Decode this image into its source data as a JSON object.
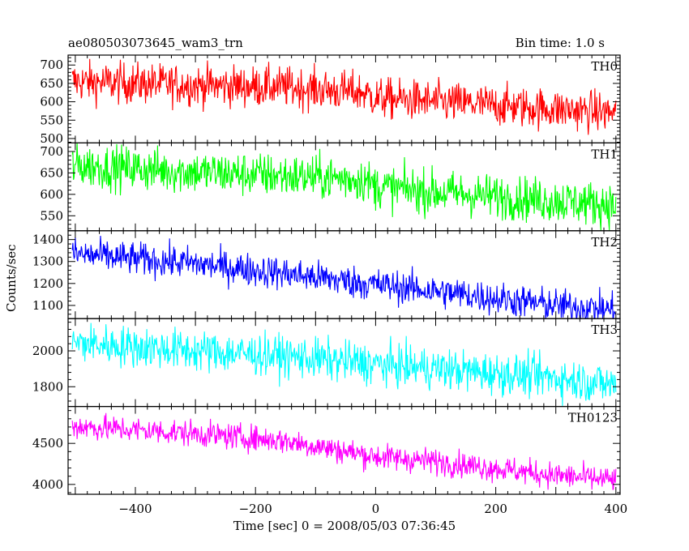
{
  "header": {
    "title": "ae080503073645_wam3_trn",
    "bin_time": "Bin time: 1.0 s"
  },
  "chart_data": {
    "type": "line",
    "xlabel": "Time [sec] 0 = 2008/05/03 07:36:45",
    "ylabel": "Counts/sec",
    "xlim": [
      -512,
      407
    ],
    "x_ticks": [
      -400,
      -200,
      0,
      200,
      400
    ],
    "x_tick_labels": [
      "−400",
      "−200",
      "0",
      "200",
      "400"
    ],
    "x_step": 1.0,
    "panels": [
      {
        "name": "TH0",
        "color": "#ff0000",
        "ylim": [
          488,
          727
        ],
        "ticks": [
          500,
          550,
          600,
          650,
          700
        ],
        "trend": [
          [
            -505,
            655
          ],
          [
            -300,
            645
          ],
          [
            -150,
            640
          ],
          [
            -20,
            625
          ],
          [
            0,
            610
          ],
          [
            100,
            600
          ],
          [
            300,
            580
          ],
          [
            400,
            570
          ]
        ],
        "noise": 28
      },
      {
        "name": "TH1",
        "color": "#00ff00",
        "ylim": [
          515,
          720
        ],
        "ticks": [
          550,
          600,
          650,
          700
        ],
        "trend": [
          [
            -505,
            668
          ],
          [
            -300,
            652
          ],
          [
            -150,
            643
          ],
          [
            -20,
            635
          ],
          [
            0,
            618
          ],
          [
            100,
            605
          ],
          [
            300,
            585
          ],
          [
            400,
            575
          ]
        ],
        "noise": 26
      },
      {
        "name": "TH2",
        "color": "#0000ff",
        "ylim": [
          1040,
          1440
        ],
        "ticks": [
          1100,
          1200,
          1300,
          1400
        ],
        "trend": [
          [
            -505,
            1335
          ],
          [
            -300,
            1290
          ],
          [
            -150,
            1245
          ],
          [
            0,
            1195
          ],
          [
            100,
            1165
          ],
          [
            300,
            1100
          ],
          [
            400,
            1080
          ]
        ],
        "noise": 38
      },
      {
        "name": "TH3",
        "color": "#00ffff",
        "ylim": [
          1690,
          2180
        ],
        "ticks": [
          1800,
          2000
        ],
        "trend": [
          [
            -505,
            2045
          ],
          [
            -300,
            2000
          ],
          [
            -150,
            1970
          ],
          [
            0,
            1925
          ],
          [
            100,
            1900
          ],
          [
            300,
            1850
          ],
          [
            400,
            1810
          ]
        ],
        "noise": 58
      },
      {
        "name": "TH0123",
        "color": "#ff00ff",
        "ylim": [
          3880,
          4950
        ],
        "ticks": [
          4000,
          4500
        ],
        "trend": [
          [
            -505,
            4710
          ],
          [
            -300,
            4620
          ],
          [
            -150,
            4530
          ],
          [
            0,
            4340
          ],
          [
            100,
            4280
          ],
          [
            300,
            4110
          ],
          [
            400,
            4050
          ]
        ],
        "noise": 80
      }
    ]
  }
}
